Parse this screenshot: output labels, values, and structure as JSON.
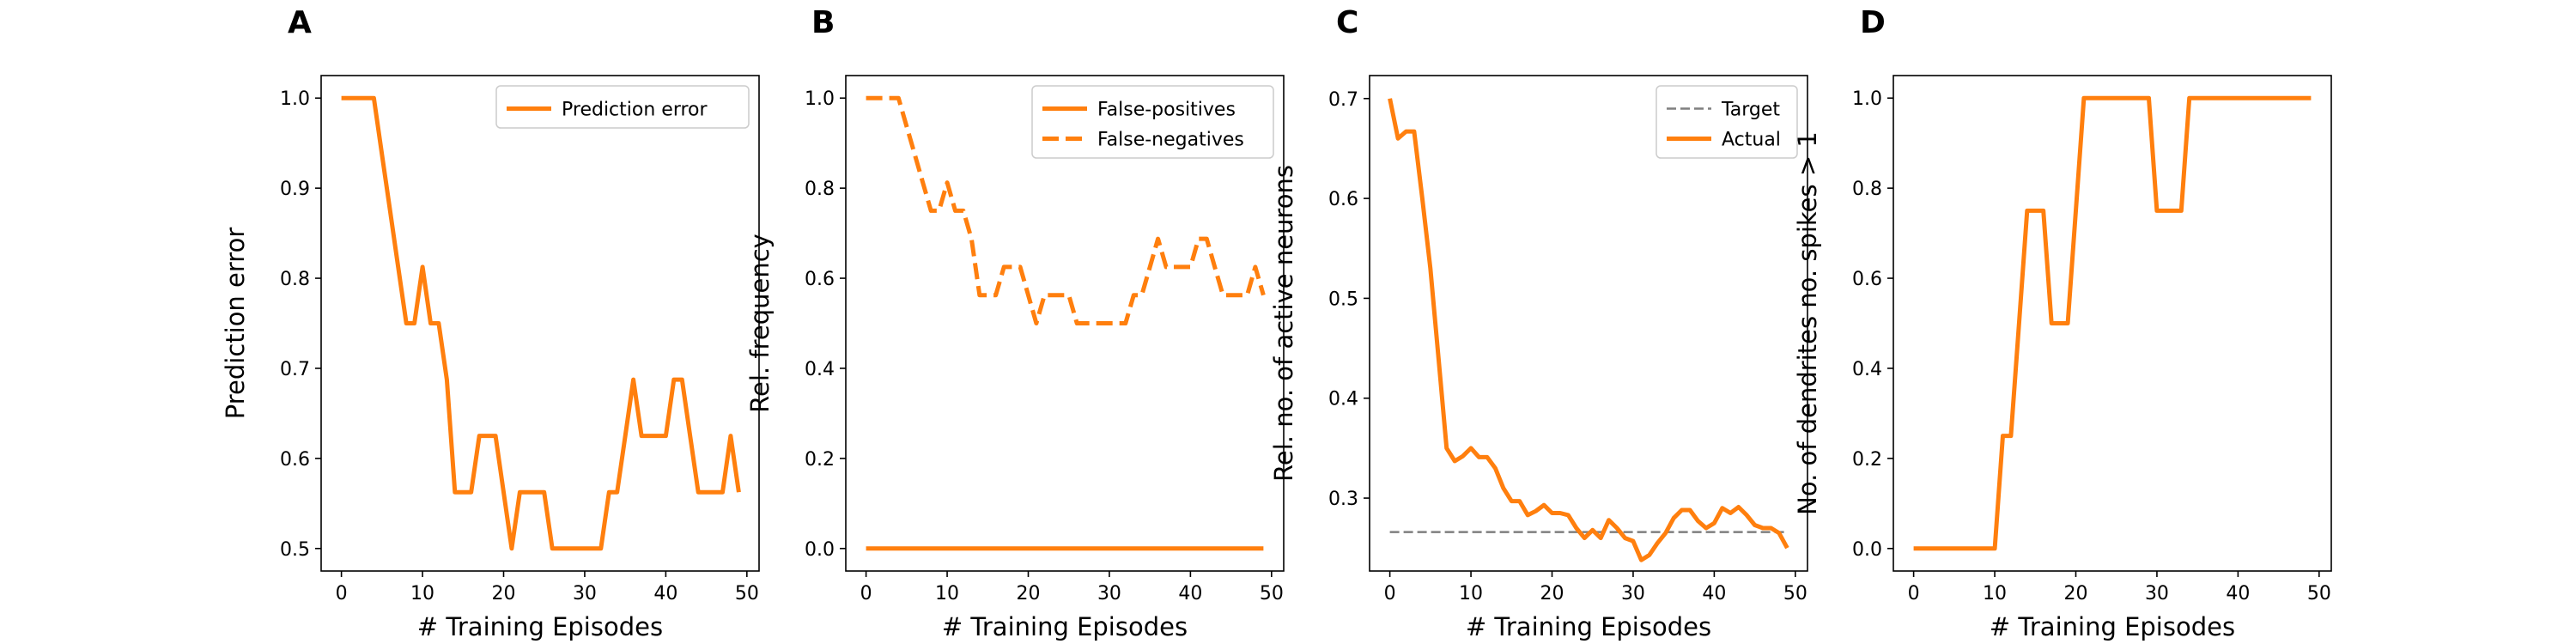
{
  "figure": {
    "series_color": "#ff7f0e",
    "target_color": "#7f7f7f"
  },
  "chart_data": [
    {
      "panel": "A",
      "type": "line",
      "xlabel": "# Training Episodes",
      "ylabel": "Prediction error",
      "xlim": [
        -2.5,
        51.5
      ],
      "ylim": [
        0.475,
        1.025
      ],
      "xticks": [
        0,
        10,
        20,
        30,
        40,
        50
      ],
      "yticks": [
        0.5,
        0.6,
        0.7,
        0.8,
        0.9,
        1.0
      ],
      "ytick_labels": [
        "0.5",
        "0.6",
        "0.7",
        "0.8",
        "0.9",
        "1.0"
      ],
      "legend": "top-right",
      "x": [
        0,
        1,
        2,
        3,
        4,
        5,
        6,
        7,
        8,
        9,
        10,
        11,
        12,
        13,
        14,
        15,
        16,
        17,
        18,
        19,
        20,
        21,
        22,
        23,
        24,
        25,
        26,
        27,
        28,
        29,
        30,
        31,
        32,
        33,
        34,
        35,
        36,
        37,
        38,
        39,
        40,
        41,
        42,
        43,
        44,
        45,
        46,
        47,
        48,
        49
      ],
      "series": [
        {
          "name": "Prediction error",
          "style": "solid",
          "values": [
            1.0,
            1.0,
            1.0,
            1.0,
            1.0,
            0.9375,
            0.875,
            0.8125,
            0.75,
            0.75,
            0.8125,
            0.75,
            0.75,
            0.6875,
            0.5625,
            0.5625,
            0.5625,
            0.625,
            0.625,
            0.625,
            0.5625,
            0.5,
            0.5625,
            0.5625,
            0.5625,
            0.5625,
            0.5,
            0.5,
            0.5,
            0.5,
            0.5,
            0.5,
            0.5,
            0.5625,
            0.5625,
            0.625,
            0.6875,
            0.625,
            0.625,
            0.625,
            0.625,
            0.6875,
            0.6875,
            0.625,
            0.5625,
            0.5625,
            0.5625,
            0.5625,
            0.625,
            0.5625
          ]
        }
      ]
    },
    {
      "panel": "B",
      "type": "line",
      "xlabel": "# Training Episodes",
      "ylabel": "Rel. frequency",
      "xlim": [
        -2.5,
        51.5
      ],
      "ylim": [
        -0.05,
        1.05
      ],
      "xticks": [
        0,
        10,
        20,
        30,
        40,
        50
      ],
      "yticks": [
        0.0,
        0.2,
        0.4,
        0.6,
        0.8,
        1.0
      ],
      "ytick_labels": [
        "0.0",
        "0.2",
        "0.4",
        "0.6",
        "0.8",
        "1.0"
      ],
      "legend": "top-right",
      "x": [
        0,
        1,
        2,
        3,
        4,
        5,
        6,
        7,
        8,
        9,
        10,
        11,
        12,
        13,
        14,
        15,
        16,
        17,
        18,
        19,
        20,
        21,
        22,
        23,
        24,
        25,
        26,
        27,
        28,
        29,
        30,
        31,
        32,
        33,
        34,
        35,
        36,
        37,
        38,
        39,
        40,
        41,
        42,
        43,
        44,
        45,
        46,
        47,
        48,
        49
      ],
      "series": [
        {
          "name": "False-positives",
          "style": "solid",
          "values": [
            0,
            0,
            0,
            0,
            0,
            0,
            0,
            0,
            0,
            0,
            0,
            0,
            0,
            0,
            0,
            0,
            0,
            0,
            0,
            0,
            0,
            0,
            0,
            0,
            0,
            0,
            0,
            0,
            0,
            0,
            0,
            0,
            0,
            0,
            0,
            0,
            0,
            0,
            0,
            0,
            0,
            0,
            0,
            0,
            0,
            0,
            0,
            0,
            0,
            0
          ]
        },
        {
          "name": "False-negatives",
          "style": "dashed",
          "values": [
            1.0,
            1.0,
            1.0,
            1.0,
            1.0,
            0.9375,
            0.875,
            0.8125,
            0.75,
            0.75,
            0.8125,
            0.75,
            0.75,
            0.6875,
            0.5625,
            0.5625,
            0.5625,
            0.625,
            0.625,
            0.625,
            0.5625,
            0.5,
            0.5625,
            0.5625,
            0.5625,
            0.5625,
            0.5,
            0.5,
            0.5,
            0.5,
            0.5,
            0.5,
            0.5,
            0.5625,
            0.5625,
            0.625,
            0.6875,
            0.625,
            0.625,
            0.625,
            0.625,
            0.6875,
            0.6875,
            0.625,
            0.5625,
            0.5625,
            0.5625,
            0.5625,
            0.625,
            0.5625
          ]
        }
      ]
    },
    {
      "panel": "C",
      "type": "line",
      "xlabel": "# Training Episodes",
      "ylabel": "Rel. no. of active neurons",
      "xlim": [
        -2.5,
        51.5
      ],
      "ylim": [
        0.227,
        0.723
      ],
      "xticks": [
        0,
        10,
        20,
        30,
        40,
        50
      ],
      "yticks": [
        0.3,
        0.4,
        0.5,
        0.6,
        0.7
      ],
      "ytick_labels": [
        "0.3",
        "0.4",
        "0.5",
        "0.6",
        "0.7"
      ],
      "legend": "top-right",
      "x": [
        0,
        1,
        2,
        3,
        4,
        5,
        6,
        7,
        8,
        9,
        10,
        11,
        12,
        13,
        14,
        15,
        16,
        17,
        18,
        19,
        20,
        21,
        22,
        23,
        24,
        25,
        26,
        27,
        28,
        29,
        30,
        31,
        32,
        33,
        34,
        35,
        36,
        37,
        38,
        39,
        40,
        41,
        42,
        43,
        44,
        45,
        46,
        47,
        48,
        49
      ],
      "series": [
        {
          "name": "Target",
          "style": "dashed-gray",
          "values": [
            0.266,
            0.266,
            0.266,
            0.266,
            0.266,
            0.266,
            0.266,
            0.266,
            0.266,
            0.266,
            0.266,
            0.266,
            0.266,
            0.266,
            0.266,
            0.266,
            0.266,
            0.266,
            0.266,
            0.266,
            0.266,
            0.266,
            0.266,
            0.266,
            0.266,
            0.266,
            0.266,
            0.266,
            0.266,
            0.266,
            0.266,
            0.266,
            0.266,
            0.266,
            0.266,
            0.266,
            0.266,
            0.266,
            0.266,
            0.266,
            0.266,
            0.266,
            0.266,
            0.266,
            0.266,
            0.266,
            0.266,
            0.266,
            0.266,
            0.266
          ]
        },
        {
          "name": "Actual",
          "style": "solid",
          "values": [
            0.7,
            0.66,
            0.667,
            0.667,
            0.6,
            0.53,
            0.44,
            0.35,
            0.337,
            0.342,
            0.35,
            0.341,
            0.341,
            0.33,
            0.31,
            0.297,
            0.297,
            0.283,
            0.287,
            0.293,
            0.285,
            0.285,
            0.283,
            0.27,
            0.26,
            0.268,
            0.26,
            0.278,
            0.27,
            0.26,
            0.257,
            0.238,
            0.243,
            0.255,
            0.265,
            0.28,
            0.288,
            0.288,
            0.277,
            0.27,
            0.275,
            0.29,
            0.285,
            0.291,
            0.283,
            0.273,
            0.27,
            0.27,
            0.265,
            0.25
          ]
        }
      ]
    },
    {
      "panel": "D",
      "type": "line",
      "xlabel": "# Training Episodes",
      "ylabel": "No. of dendrites no. spikes > 1",
      "xlim": [
        -2.5,
        51.5
      ],
      "ylim": [
        -0.05,
        1.05
      ],
      "xticks": [
        0,
        10,
        20,
        30,
        40,
        50
      ],
      "yticks": [
        0.0,
        0.2,
        0.4,
        0.6,
        0.8,
        1.0
      ],
      "ytick_labels": [
        "0.0",
        "0.2",
        "0.4",
        "0.6",
        "0.8",
        "1.0"
      ],
      "legend": "none",
      "x": [
        0,
        1,
        2,
        3,
        4,
        5,
        6,
        7,
        8,
        9,
        10,
        11,
        12,
        13,
        14,
        15,
        16,
        17,
        18,
        19,
        20,
        21,
        22,
        23,
        24,
        25,
        26,
        27,
        28,
        29,
        30,
        31,
        32,
        33,
        34,
        35,
        36,
        37,
        38,
        39,
        40,
        41,
        42,
        43,
        44,
        45,
        46,
        47,
        48,
        49
      ],
      "series": [
        {
          "style": "solid",
          "values": [
            0,
            0,
            0,
            0,
            0,
            0,
            0,
            0,
            0,
            0,
            0,
            0.25,
            0.25,
            0.5,
            0.75,
            0.75,
            0.75,
            0.5,
            0.5,
            0.5,
            0.75,
            1.0,
            1.0,
            1.0,
            1.0,
            1.0,
            1.0,
            1.0,
            1.0,
            1.0,
            0.75,
            0.75,
            0.75,
            0.75,
            1.0,
            1.0,
            1.0,
            1.0,
            1.0,
            1.0,
            1.0,
            1.0,
            1.0,
            1.0,
            1.0,
            1.0,
            1.0,
            1.0,
            1.0,
            1.0
          ]
        }
      ]
    }
  ]
}
